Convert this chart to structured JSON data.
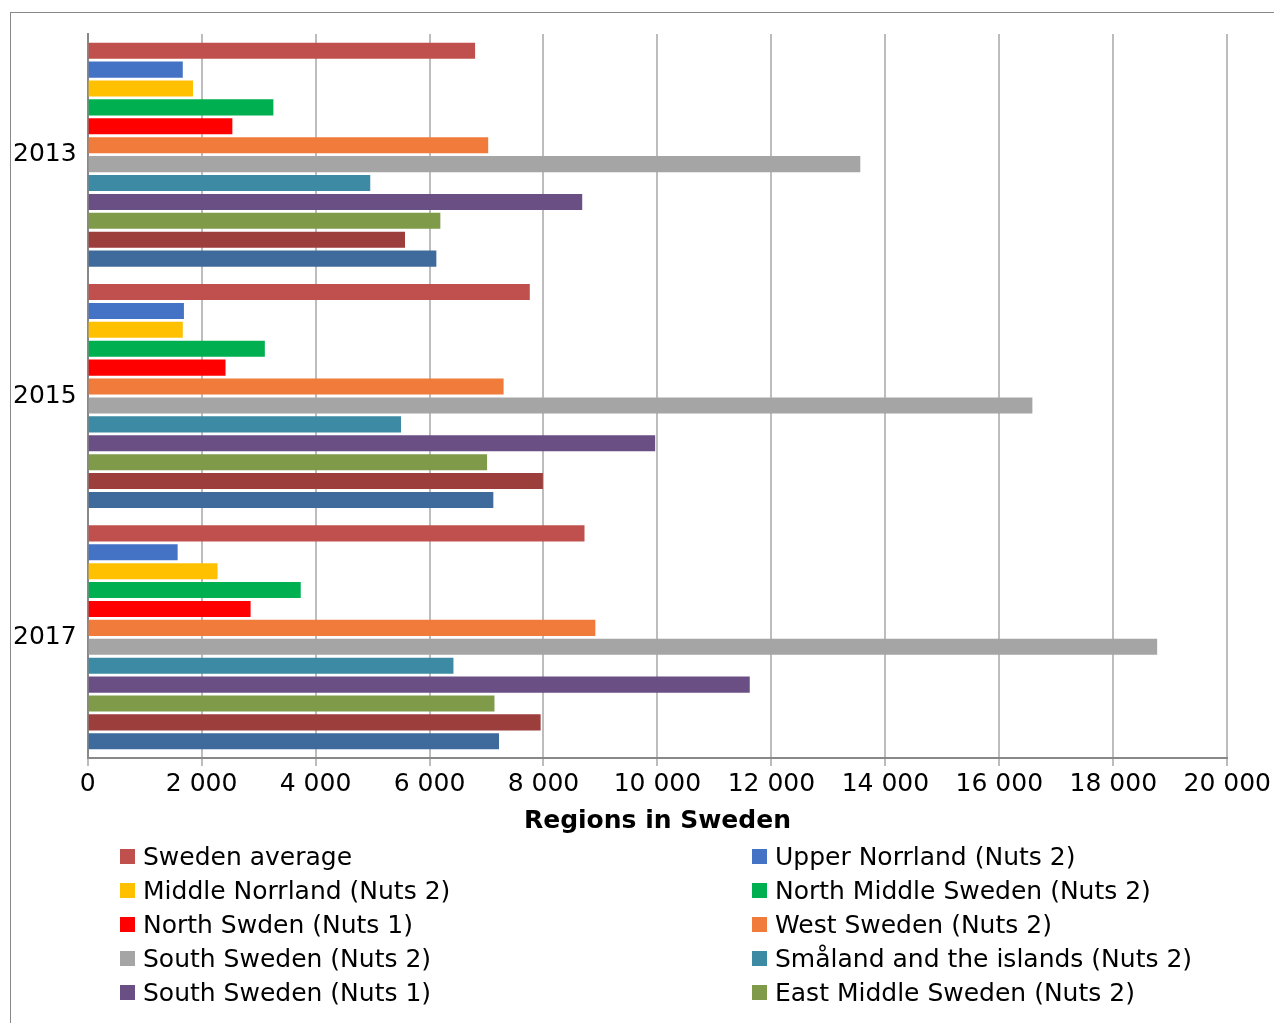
{
  "chart_data": {
    "type": "bar",
    "orientation": "horizontal",
    "xlabel": "Regions in Sweden",
    "categories": [
      "2013",
      "2015",
      "2017"
    ],
    "series": [
      {
        "name": "Sweden average",
        "color": "#c0504d",
        "values": [
          6800,
          7760,
          8720
        ]
      },
      {
        "name": "Upper Norrland (Nuts 2)",
        "color": "#4472c4",
        "values": [
          1670,
          1690,
          1580
        ]
      },
      {
        "name": "Middle Norrland (Nuts 2)",
        "color": "#ffc000",
        "values": [
          1850,
          1670,
          2280
        ]
      },
      {
        "name": "North Middle Sweden (Nuts 2)",
        "color": "#00b050",
        "values": [
          3260,
          3110,
          3740
        ]
      },
      {
        "name": "North Swden (Nuts 1)",
        "color": "#ff0000",
        "values": [
          2540,
          2420,
          2860
        ]
      },
      {
        "name": "West Sweden (Nuts 2)",
        "color": "#f07b3a",
        "values": [
          7030,
          7300,
          8910
        ]
      },
      {
        "name": "South Sweden (Nuts 2)",
        "color": "#a5a5a5",
        "values": [
          13560,
          16580,
          18770
        ]
      },
      {
        "name": "Småland and the islands (Nuts 2)",
        "color": "#3c8aa3",
        "values": [
          4960,
          5500,
          6420
        ]
      },
      {
        "name": "South Sweden (Nuts 1)",
        "color": "#6a4f85",
        "values": [
          8680,
          9960,
          11620
        ]
      },
      {
        "name": "East Middle Sweden (Nuts 2)",
        "color": "#7f9a48",
        "values": [
          6190,
          7010,
          7140
        ]
      },
      {
        "color": "#9c3e3c",
        "values": [
          5570,
          7990,
          7950
        ]
      },
      {
        "color": "#3f6a9c",
        "values": [
          6120,
          7120,
          7220
        ]
      }
    ],
    "xlim": [
      0,
      20000
    ],
    "xticks": [
      {
        "value": 0,
        "label": "0"
      },
      {
        "value": 2000,
        "label": "2 000"
      },
      {
        "value": 4000,
        "label": "4 000"
      },
      {
        "value": 6000,
        "label": "6 000"
      },
      {
        "value": 8000,
        "label": "8 000"
      },
      {
        "value": 10000,
        "label": "10 000"
      },
      {
        "value": 12000,
        "label": "12 000"
      },
      {
        "value": 14000,
        "label": "14 000"
      },
      {
        "value": 16000,
        "label": "16 000"
      },
      {
        "value": 18000,
        "label": "18 000"
      },
      {
        "value": 20000,
        "label": "20 000"
      }
    ],
    "grid": "x",
    "legend": "bottom"
  }
}
